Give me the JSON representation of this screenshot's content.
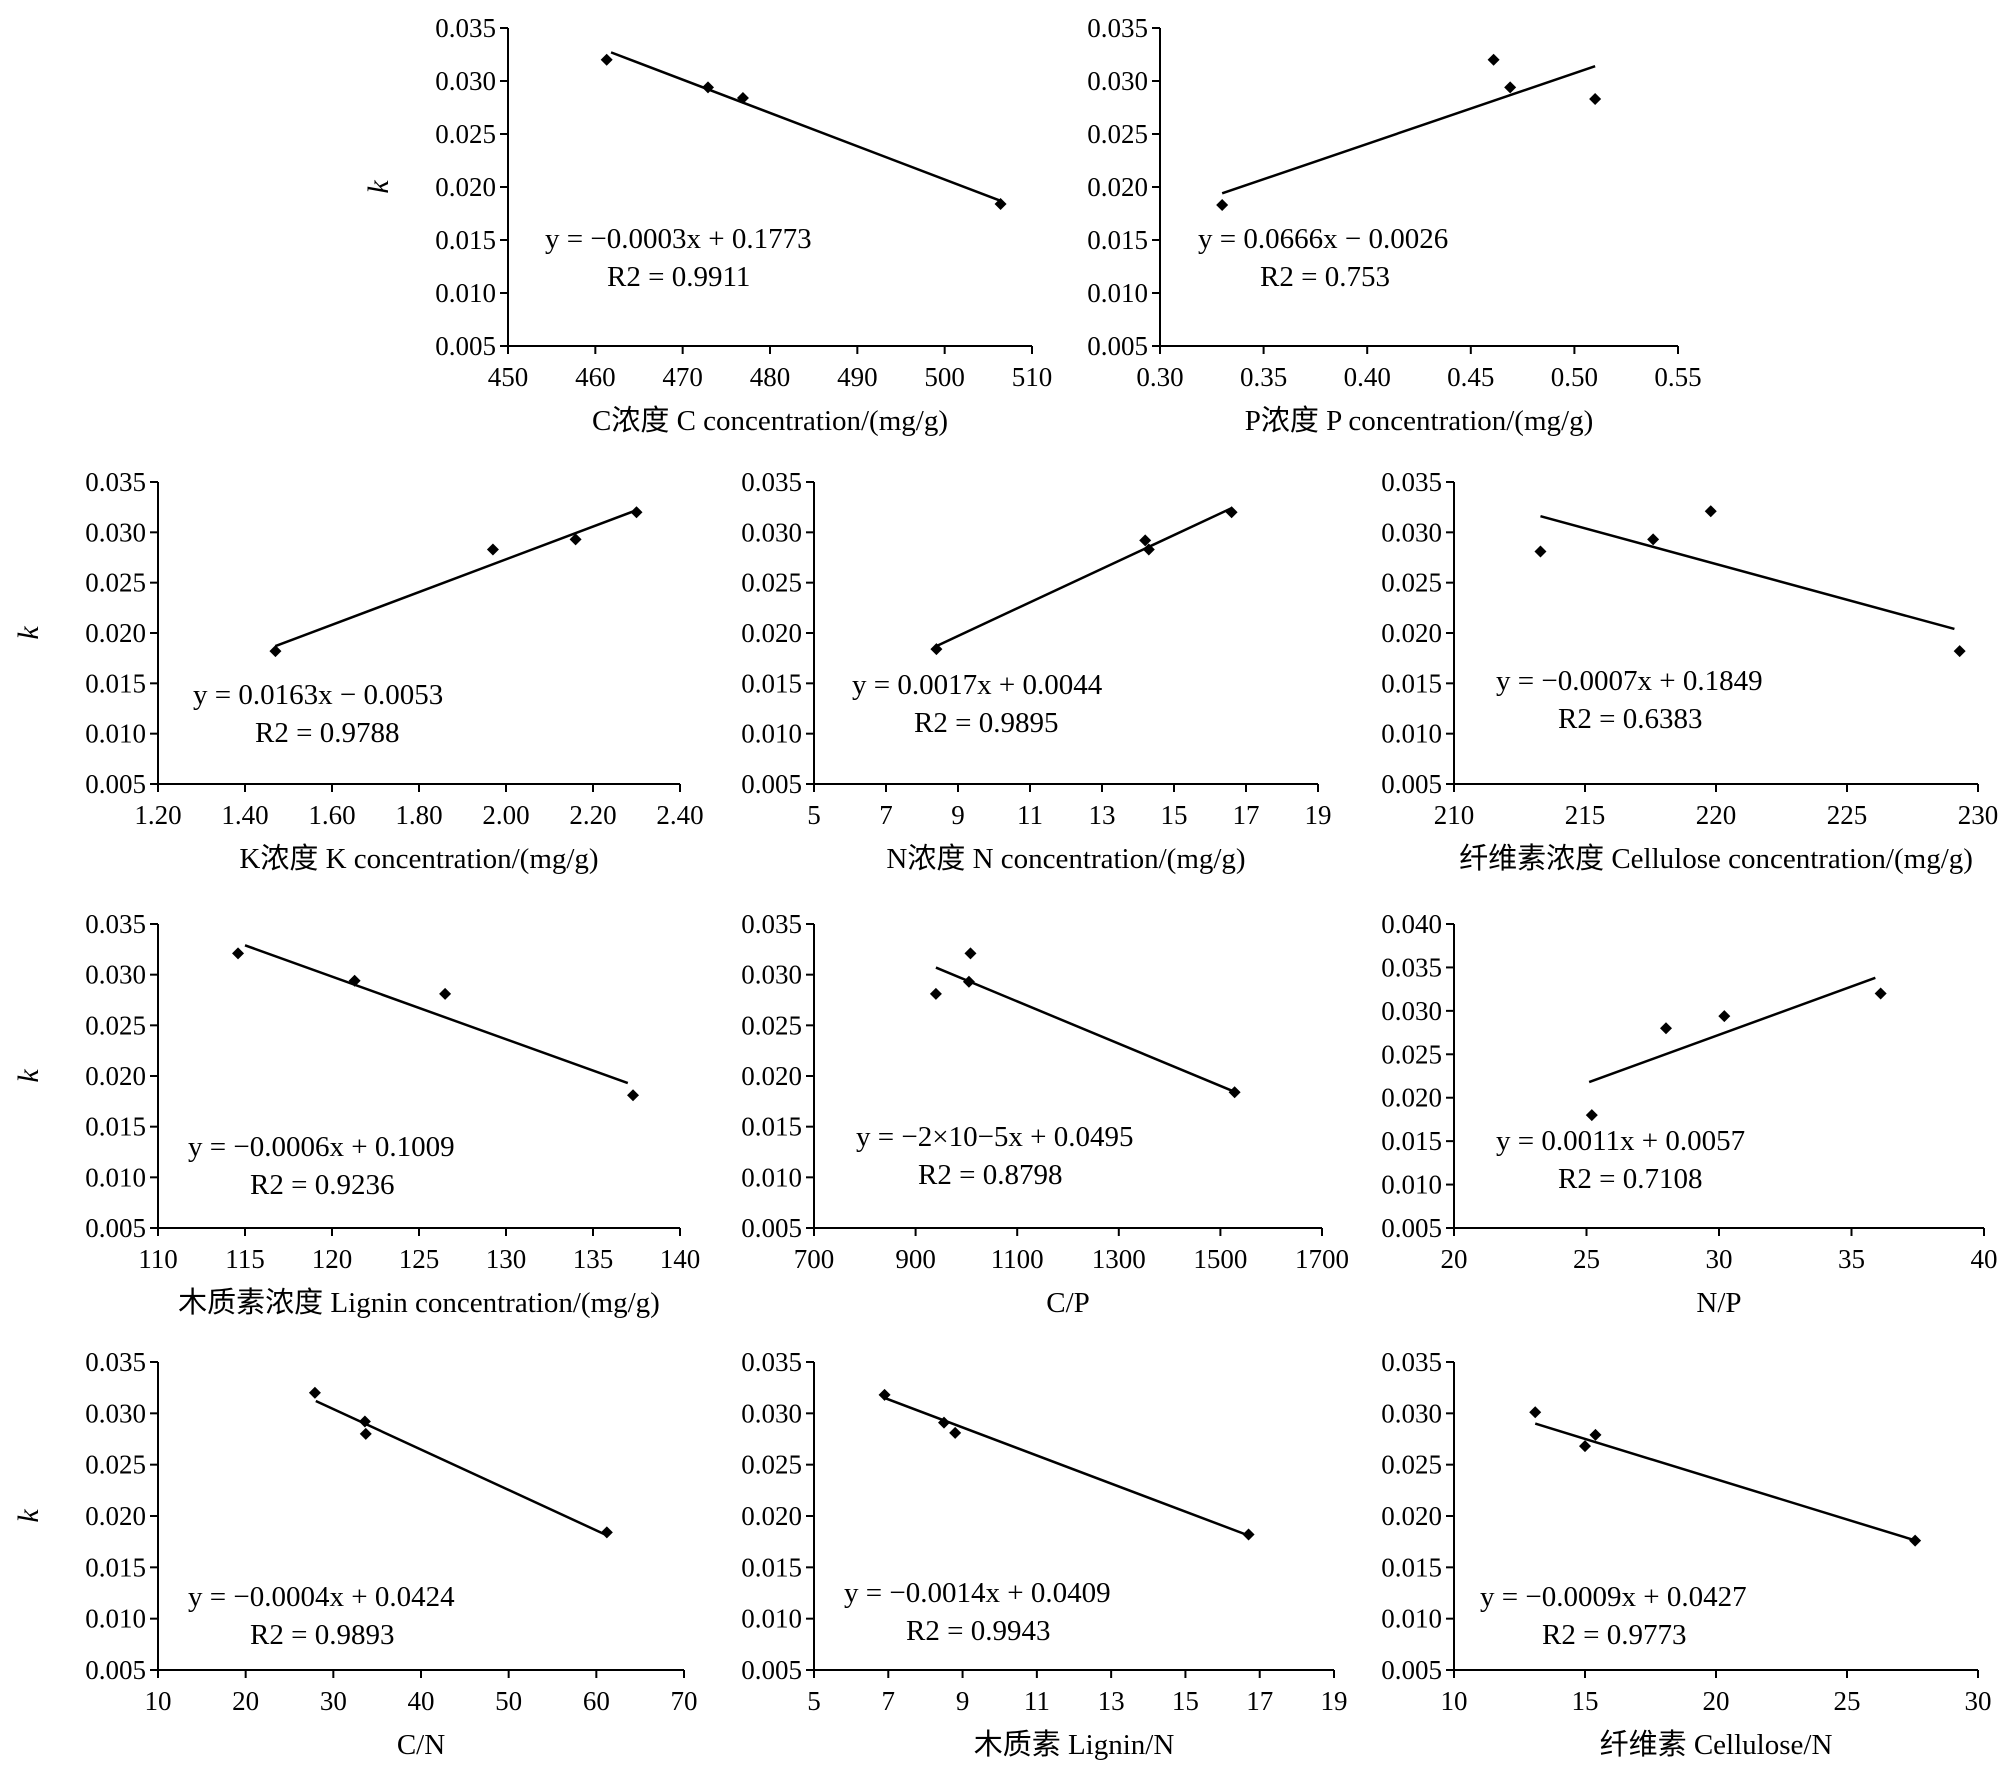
{
  "figure": {
    "chart_data": [
      {
        "type": "scatter",
        "xlabel": "C浓度 C concentration/(mg/g)",
        "ylabel": "k",
        "xlim": [
          450,
          510
        ],
        "xticks": [
          "450",
          "460",
          "470",
          "480",
          "490",
          "500",
          "510"
        ],
        "ylim": [
          0.005,
          0.035
        ],
        "yticks": [
          "0.005",
          "0.010",
          "0.015",
          "0.020",
          "0.025",
          "0.030",
          "0.035"
        ],
        "points": [
          [
            461.3,
            0.032
          ],
          [
            472.9,
            0.0294
          ],
          [
            476.9,
            0.0284
          ],
          [
            506.4,
            0.0184
          ]
        ],
        "fit": {
          "x": [
            461.8,
            506.4
          ],
          "y": [
            0.0327,
            0.0187
          ]
        },
        "equation": "y = −0.0003x + 0.1773",
        "r2": "R2 =  0.9911"
      },
      {
        "type": "scatter",
        "xlabel": "P浓度 P concentration/(mg/g)",
        "ylabel": "",
        "xlim": [
          0.3,
          0.55
        ],
        "xticks": [
          "0.30",
          "0.35",
          "0.40",
          "0.45",
          "0.50",
          "0.55"
        ],
        "ylim": [
          0.005,
          0.035
        ],
        "yticks": [
          "0.005",
          "0.010",
          "0.015",
          "0.020",
          "0.025",
          "0.030",
          "0.035"
        ],
        "points": [
          [
            0.33,
            0.0183
          ],
          [
            0.461,
            0.032
          ],
          [
            0.469,
            0.0294
          ],
          [
            0.51,
            0.0283
          ]
        ],
        "fit": {
          "x": [
            0.33,
            0.51
          ],
          "y": [
            0.0194,
            0.0314
          ]
        },
        "equation": "y = 0.0666x − 0.0026",
        "r2": "R2 =  0.753"
      },
      {
        "type": "scatter",
        "xlabel": "K浓度 K concentration/(mg/g)",
        "ylabel": "k",
        "xlim": [
          1.2,
          2.4
        ],
        "xticks": [
          "1.20",
          "1.40",
          "1.60",
          "1.80",
          "2.00",
          "2.20",
          "2.40"
        ],
        "ylim": [
          0.005,
          0.035
        ],
        "yticks": [
          "0.005",
          "0.010",
          "0.015",
          "0.020",
          "0.025",
          "0.030",
          "0.035"
        ],
        "points": [
          [
            1.47,
            0.0182
          ],
          [
            1.97,
            0.0283
          ],
          [
            2.16,
            0.0293
          ],
          [
            2.3,
            0.032
          ]
        ],
        "fit": {
          "x": [
            1.47,
            2.3
          ],
          "y": [
            0.0187,
            0.0322
          ]
        },
        "equation": "y = 0.0163x − 0.0053",
        "r2": "R2 =  0.9788"
      },
      {
        "type": "scatter",
        "xlabel": "N浓度 N concentration/(mg/g)",
        "ylabel": "",
        "xlim": [
          5,
          19
        ],
        "xticks": [
          "5",
          "7",
          "9",
          "11",
          "13",
          "15",
          "17",
          "19"
        ],
        "ylim": [
          0.005,
          0.035
        ],
        "yticks": [
          "0.005",
          "0.010",
          "0.015",
          "0.020",
          "0.025",
          "0.030",
          "0.035"
        ],
        "points": [
          [
            8.4,
            0.0184
          ],
          [
            14.2,
            0.0292
          ],
          [
            14.3,
            0.0283
          ],
          [
            16.6,
            0.032
          ]
        ],
        "fit": {
          "x": [
            8.4,
            16.6
          ],
          "y": [
            0.0187,
            0.0324
          ]
        },
        "equation": "y = 0.0017x + 0.0044",
        "r2": "R2 =  0.9895"
      },
      {
        "type": "scatter",
        "xlabel": "纤维素浓度 Cellulose concentration/(mg/g)",
        "ylabel": "",
        "xlim": [
          210,
          230
        ],
        "xticks": [
          "210",
          "215",
          "220",
          "225",
          "230"
        ],
        "ylim": [
          0.005,
          0.035
        ],
        "yticks": [
          "0.005",
          "0.010",
          "0.015",
          "0.020",
          "0.025",
          "0.030",
          "0.035"
        ],
        "points": [
          [
            213.3,
            0.0281
          ],
          [
            217.6,
            0.0293
          ],
          [
            219.8,
            0.0321
          ],
          [
            229.3,
            0.0182
          ]
        ],
        "fit": {
          "x": [
            213.3,
            229.1
          ],
          "y": [
            0.0316,
            0.0204
          ]
        },
        "equation": "y = −0.0007x + 0.1849",
        "r2": "R2 =  0.6383"
      },
      {
        "type": "scatter",
        "xlabel": "木质素浓度 Lignin concentration/(mg/g)",
        "ylabel": "k",
        "xlim": [
          110,
          140
        ],
        "xticks": [
          "110",
          "115",
          "120",
          "125",
          "130",
          "135",
          "140"
        ],
        "ylim": [
          0.005,
          0.035
        ],
        "yticks": [
          "0.005",
          "0.010",
          "0.015",
          "0.020",
          "0.025",
          "0.030",
          "0.035"
        ],
        "points": [
          [
            114.6,
            0.0321
          ],
          [
            121.3,
            0.0294
          ],
          [
            126.5,
            0.0281
          ],
          [
            137.3,
            0.0181
          ]
        ],
        "fit": {
          "x": [
            115.0,
            137.0
          ],
          "y": [
            0.0329,
            0.0193
          ]
        },
        "equation": "y = −0.0006x + 0.1009",
        "r2": "R2 =  0.9236"
      },
      {
        "type": "scatter",
        "xlabel": "C/P",
        "ylabel": "",
        "xlim": [
          700,
          1700
        ],
        "xticks": [
          "700",
          "900",
          "1100",
          "1300",
          "1500",
          "1700"
        ],
        "ylim": [
          0.005,
          0.035
        ],
        "yticks": [
          "0.005",
          "0.010",
          "0.015",
          "0.020",
          "0.025",
          "0.030",
          "0.035"
        ],
        "points": [
          [
            940,
            0.0281
          ],
          [
            1005,
            0.0293
          ],
          [
            1008,
            0.0321
          ],
          [
            1528,
            0.0184
          ]
        ],
        "fit": {
          "x": [
            940,
            1525
          ],
          "y": [
            0.0307,
            0.0185
          ]
        },
        "equation": "y = −2×10−5x + 0.0495",
        "r2": "R2 =  0.8798"
      },
      {
        "type": "scatter",
        "xlabel": "N/P",
        "ylabel": "",
        "xlim": [
          20,
          40
        ],
        "xticks": [
          "20",
          "25",
          "30",
          "35",
          "40"
        ],
        "ylim": [
          0.005,
          0.04
        ],
        "yticks": [
          "0.005",
          "0.010",
          "0.015",
          "0.020",
          "0.025",
          "0.030",
          "0.035",
          "0.040"
        ],
        "points": [
          [
            25.2,
            0.018
          ],
          [
            28.0,
            0.028
          ],
          [
            30.2,
            0.0294
          ],
          [
            36.1,
            0.032
          ]
        ],
        "fit": {
          "x": [
            25.1,
            35.9
          ],
          "y": [
            0.0218,
            0.0338
          ]
        },
        "equation": "y = 0.0011x + 0.0057",
        "r2": "R2 =  0.7108"
      },
      {
        "type": "scatter",
        "xlabel": "C/N",
        "ylabel": "k",
        "xlim": [
          10,
          70
        ],
        "xticks": [
          "10",
          "20",
          "30",
          "40",
          "50",
          "60",
          "70"
        ],
        "ylim": [
          0.005,
          0.035
        ],
        "yticks": [
          "0.005",
          "0.010",
          "0.015",
          "0.020",
          "0.025",
          "0.030",
          "0.035"
        ],
        "points": [
          [
            27.9,
            0.032
          ],
          [
            33.6,
            0.0292
          ],
          [
            33.7,
            0.028
          ],
          [
            61.2,
            0.0184
          ]
        ],
        "fit": {
          "x": [
            28.0,
            61.0
          ],
          "y": [
            0.0312,
            0.0182
          ]
        },
        "equation": "y = −0.0004x + 0.0424",
        "r2": "R2 =  0.9893"
      },
      {
        "type": "scatter",
        "xlabel": "木质素 Lignin/N",
        "ylabel": "",
        "xlim": [
          5,
          19
        ],
        "xticks": [
          "5",
          "7",
          "9",
          "11",
          "13",
          "15",
          "17",
          "19"
        ],
        "ylim": [
          0.005,
          0.035
        ],
        "yticks": [
          "0.005",
          "0.010",
          "0.015",
          "0.020",
          "0.025",
          "0.030",
          "0.035"
        ],
        "points": [
          [
            6.9,
            0.0318
          ],
          [
            8.5,
            0.0291
          ],
          [
            8.8,
            0.0281
          ],
          [
            16.7,
            0.0182
          ]
        ],
        "fit": {
          "x": [
            6.9,
            16.7
          ],
          "y": [
            0.0315,
            0.0181
          ]
        },
        "equation": "y = −0.0014x + 0.0409",
        "r2": "R2 =  0.9943"
      },
      {
        "type": "scatter",
        "xlabel": "纤维素 Cellulose/N",
        "ylabel": "",
        "xlim": [
          10,
          30
        ],
        "xticks": [
          "10",
          "15",
          "20",
          "25",
          "30"
        ],
        "ylim": [
          0.005,
          0.035
        ],
        "yticks": [
          "0.005",
          "0.010",
          "0.015",
          "0.020",
          "0.025",
          "0.030",
          "0.035"
        ],
        "points": [
          [
            13.1,
            0.0301
          ],
          [
            15.0,
            0.0268
          ],
          [
            15.4,
            0.0279
          ],
          [
            27.6,
            0.0176
          ]
        ],
        "fit": {
          "x": [
            13.1,
            27.5
          ],
          "y": [
            0.029,
            0.0177
          ]
        },
        "equation": "y = −0.0009x + 0.0427",
        "r2": "R2 =  0.9773"
      }
    ]
  }
}
